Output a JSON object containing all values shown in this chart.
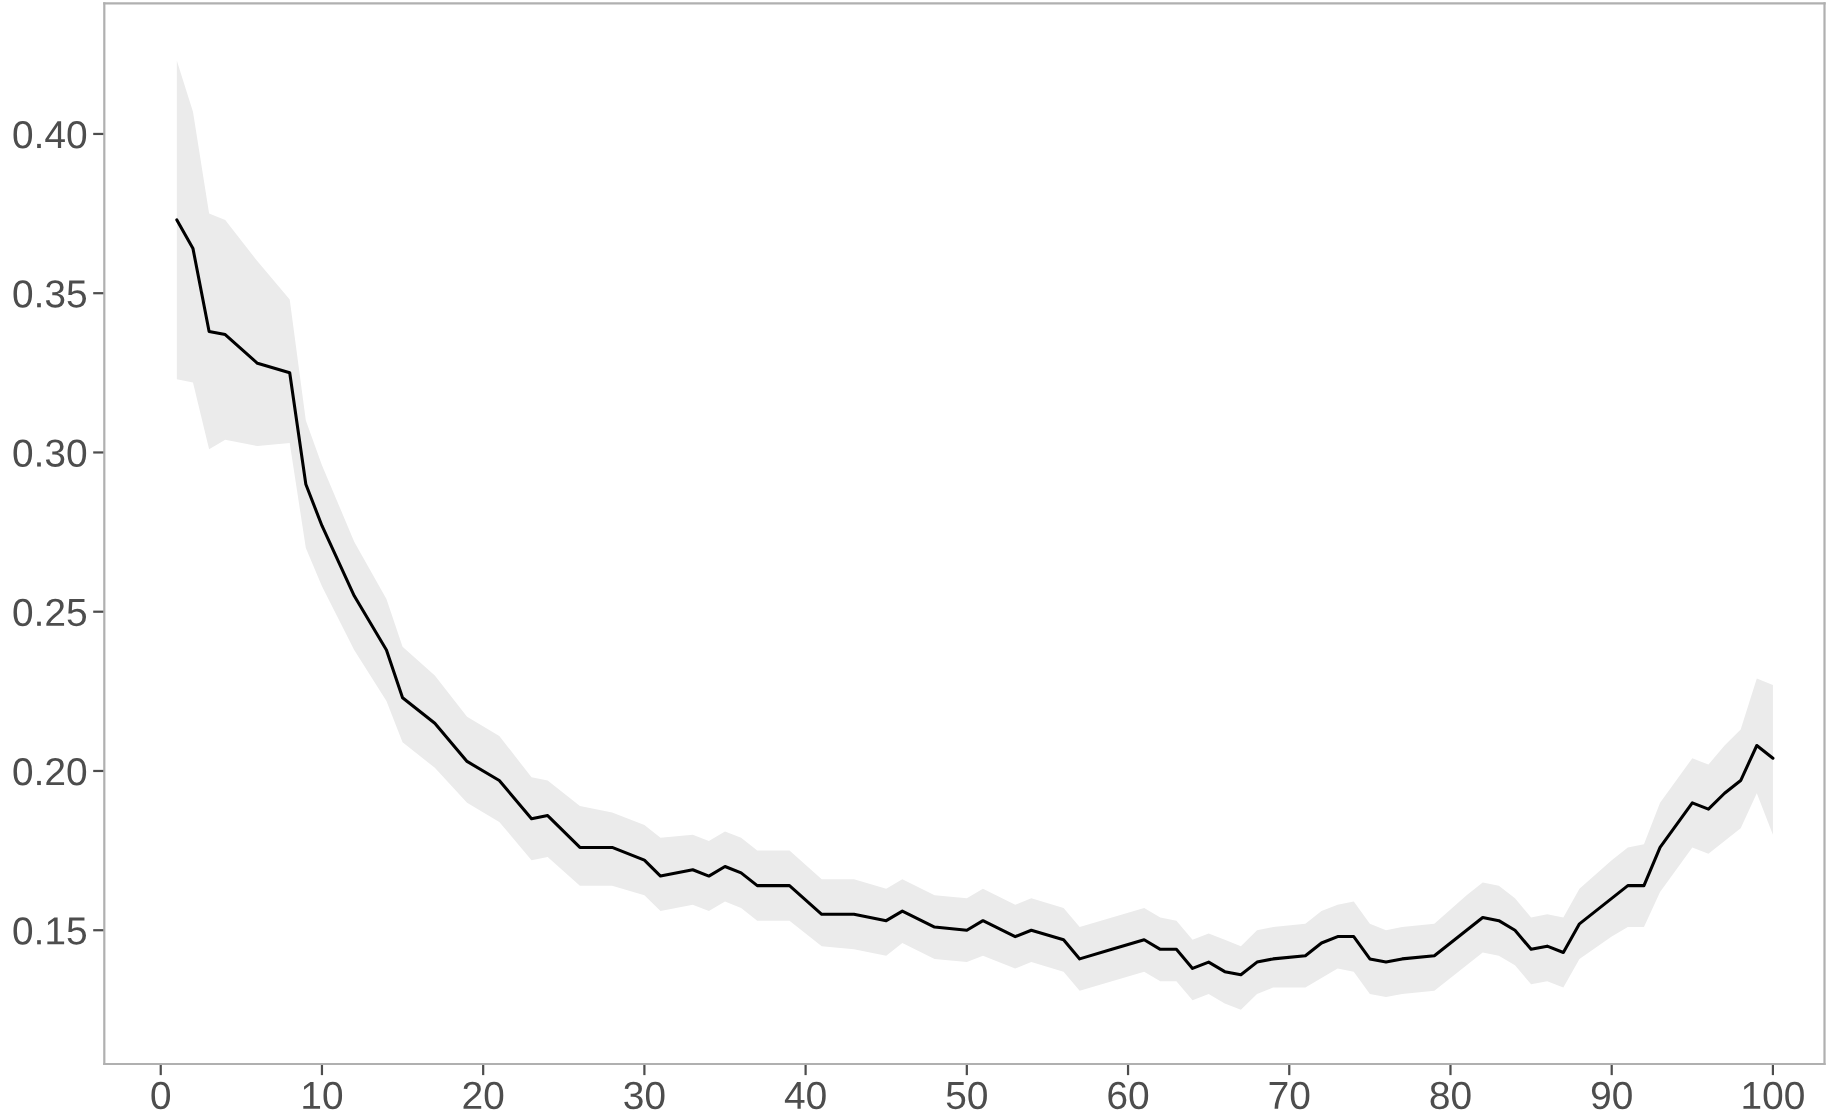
{
  "chart_data": {
    "type": "line",
    "xlim": [
      -3.5,
      103.2
    ],
    "ylim": [
      0.108,
      0.441
    ],
    "xticks": [
      0,
      10,
      20,
      30,
      40,
      50,
      60,
      70,
      80,
      90,
      100
    ],
    "yticks": [
      {
        "value": 0.15,
        "label": "0.15"
      },
      {
        "value": 0.2,
        "label": "0.20"
      },
      {
        "value": 0.25,
        "label": "0.25"
      },
      {
        "value": 0.3,
        "label": "0.30"
      },
      {
        "value": 0.35,
        "label": "0.35"
      },
      {
        "value": 0.4,
        "label": "0.40"
      }
    ],
    "grid": false,
    "line_style": "solid",
    "series": [
      {
        "color": "#000000",
        "x": [
          1,
          2,
          3,
          4,
          6,
          8,
          9,
          10,
          12,
          14,
          15,
          17,
          19,
          21,
          23,
          24,
          26,
          28,
          30,
          31,
          33,
          34,
          35,
          36,
          37,
          39,
          41,
          43,
          45,
          46,
          48,
          50,
          51,
          53,
          54,
          56,
          57,
          59,
          61,
          62,
          63,
          64,
          65,
          66,
          67,
          68,
          69,
          71,
          72,
          73,
          74,
          75,
          76,
          77,
          79,
          81,
          82,
          83,
          84,
          85,
          86,
          87,
          88,
          90,
          91,
          92,
          93,
          95,
          96,
          97,
          98,
          99,
          100
        ],
        "values": [
          0.373,
          0.364,
          0.338,
          0.337,
          0.328,
          0.325,
          0.29,
          0.277,
          0.255,
          0.238,
          0.223,
          0.215,
          0.203,
          0.197,
          0.185,
          0.186,
          0.176,
          0.176,
          0.172,
          0.167,
          0.169,
          0.167,
          0.17,
          0.168,
          0.164,
          0.164,
          0.155,
          0.155,
          0.153,
          0.156,
          0.151,
          0.15,
          0.153,
          0.148,
          0.15,
          0.147,
          0.141,
          0.144,
          0.147,
          0.144,
          0.144,
          0.138,
          0.14,
          0.137,
          0.136,
          0.14,
          0.141,
          0.142,
          0.146,
          0.148,
          0.148,
          0.141,
          0.14,
          0.141,
          0.142,
          0.15,
          0.154,
          0.153,
          0.15,
          0.144,
          0.145,
          0.143,
          0.152,
          0.16,
          0.164,
          0.164,
          0.176,
          0.19,
          0.188,
          0.193,
          0.197,
          0.208,
          0.204
        ],
        "upper": [
          0.423,
          0.407,
          0.375,
          0.373,
          0.36,
          0.348,
          0.31,
          0.296,
          0.272,
          0.254,
          0.239,
          0.23,
          0.217,
          0.211,
          0.198,
          0.197,
          0.189,
          0.187,
          0.183,
          0.179,
          0.18,
          0.178,
          0.181,
          0.179,
          0.175,
          0.175,
          0.166,
          0.166,
          0.163,
          0.166,
          0.161,
          0.16,
          0.163,
          0.158,
          0.16,
          0.157,
          0.151,
          0.154,
          0.157,
          0.154,
          0.153,
          0.147,
          0.149,
          0.147,
          0.145,
          0.15,
          0.151,
          0.152,
          0.156,
          0.158,
          0.159,
          0.152,
          0.15,
          0.151,
          0.152,
          0.161,
          0.165,
          0.164,
          0.16,
          0.154,
          0.155,
          0.154,
          0.163,
          0.172,
          0.176,
          0.177,
          0.19,
          0.204,
          0.202,
          0.208,
          0.213,
          0.229,
          0.227
        ],
        "lower": [
          0.323,
          0.322,
          0.301,
          0.304,
          0.302,
          0.303,
          0.27,
          0.258,
          0.238,
          0.222,
          0.209,
          0.201,
          0.19,
          0.184,
          0.172,
          0.173,
          0.164,
          0.164,
          0.161,
          0.156,
          0.158,
          0.156,
          0.159,
          0.157,
          0.153,
          0.153,
          0.145,
          0.144,
          0.142,
          0.146,
          0.141,
          0.14,
          0.142,
          0.138,
          0.14,
          0.137,
          0.131,
          0.134,
          0.137,
          0.134,
          0.134,
          0.128,
          0.13,
          0.127,
          0.125,
          0.13,
          0.132,
          0.132,
          0.135,
          0.138,
          0.137,
          0.13,
          0.129,
          0.13,
          0.131,
          0.139,
          0.143,
          0.142,
          0.139,
          0.133,
          0.134,
          0.132,
          0.141,
          0.148,
          0.151,
          0.151,
          0.162,
          0.176,
          0.174,
          0.178,
          0.182,
          0.193,
          0.18
        ]
      }
    ]
  }
}
